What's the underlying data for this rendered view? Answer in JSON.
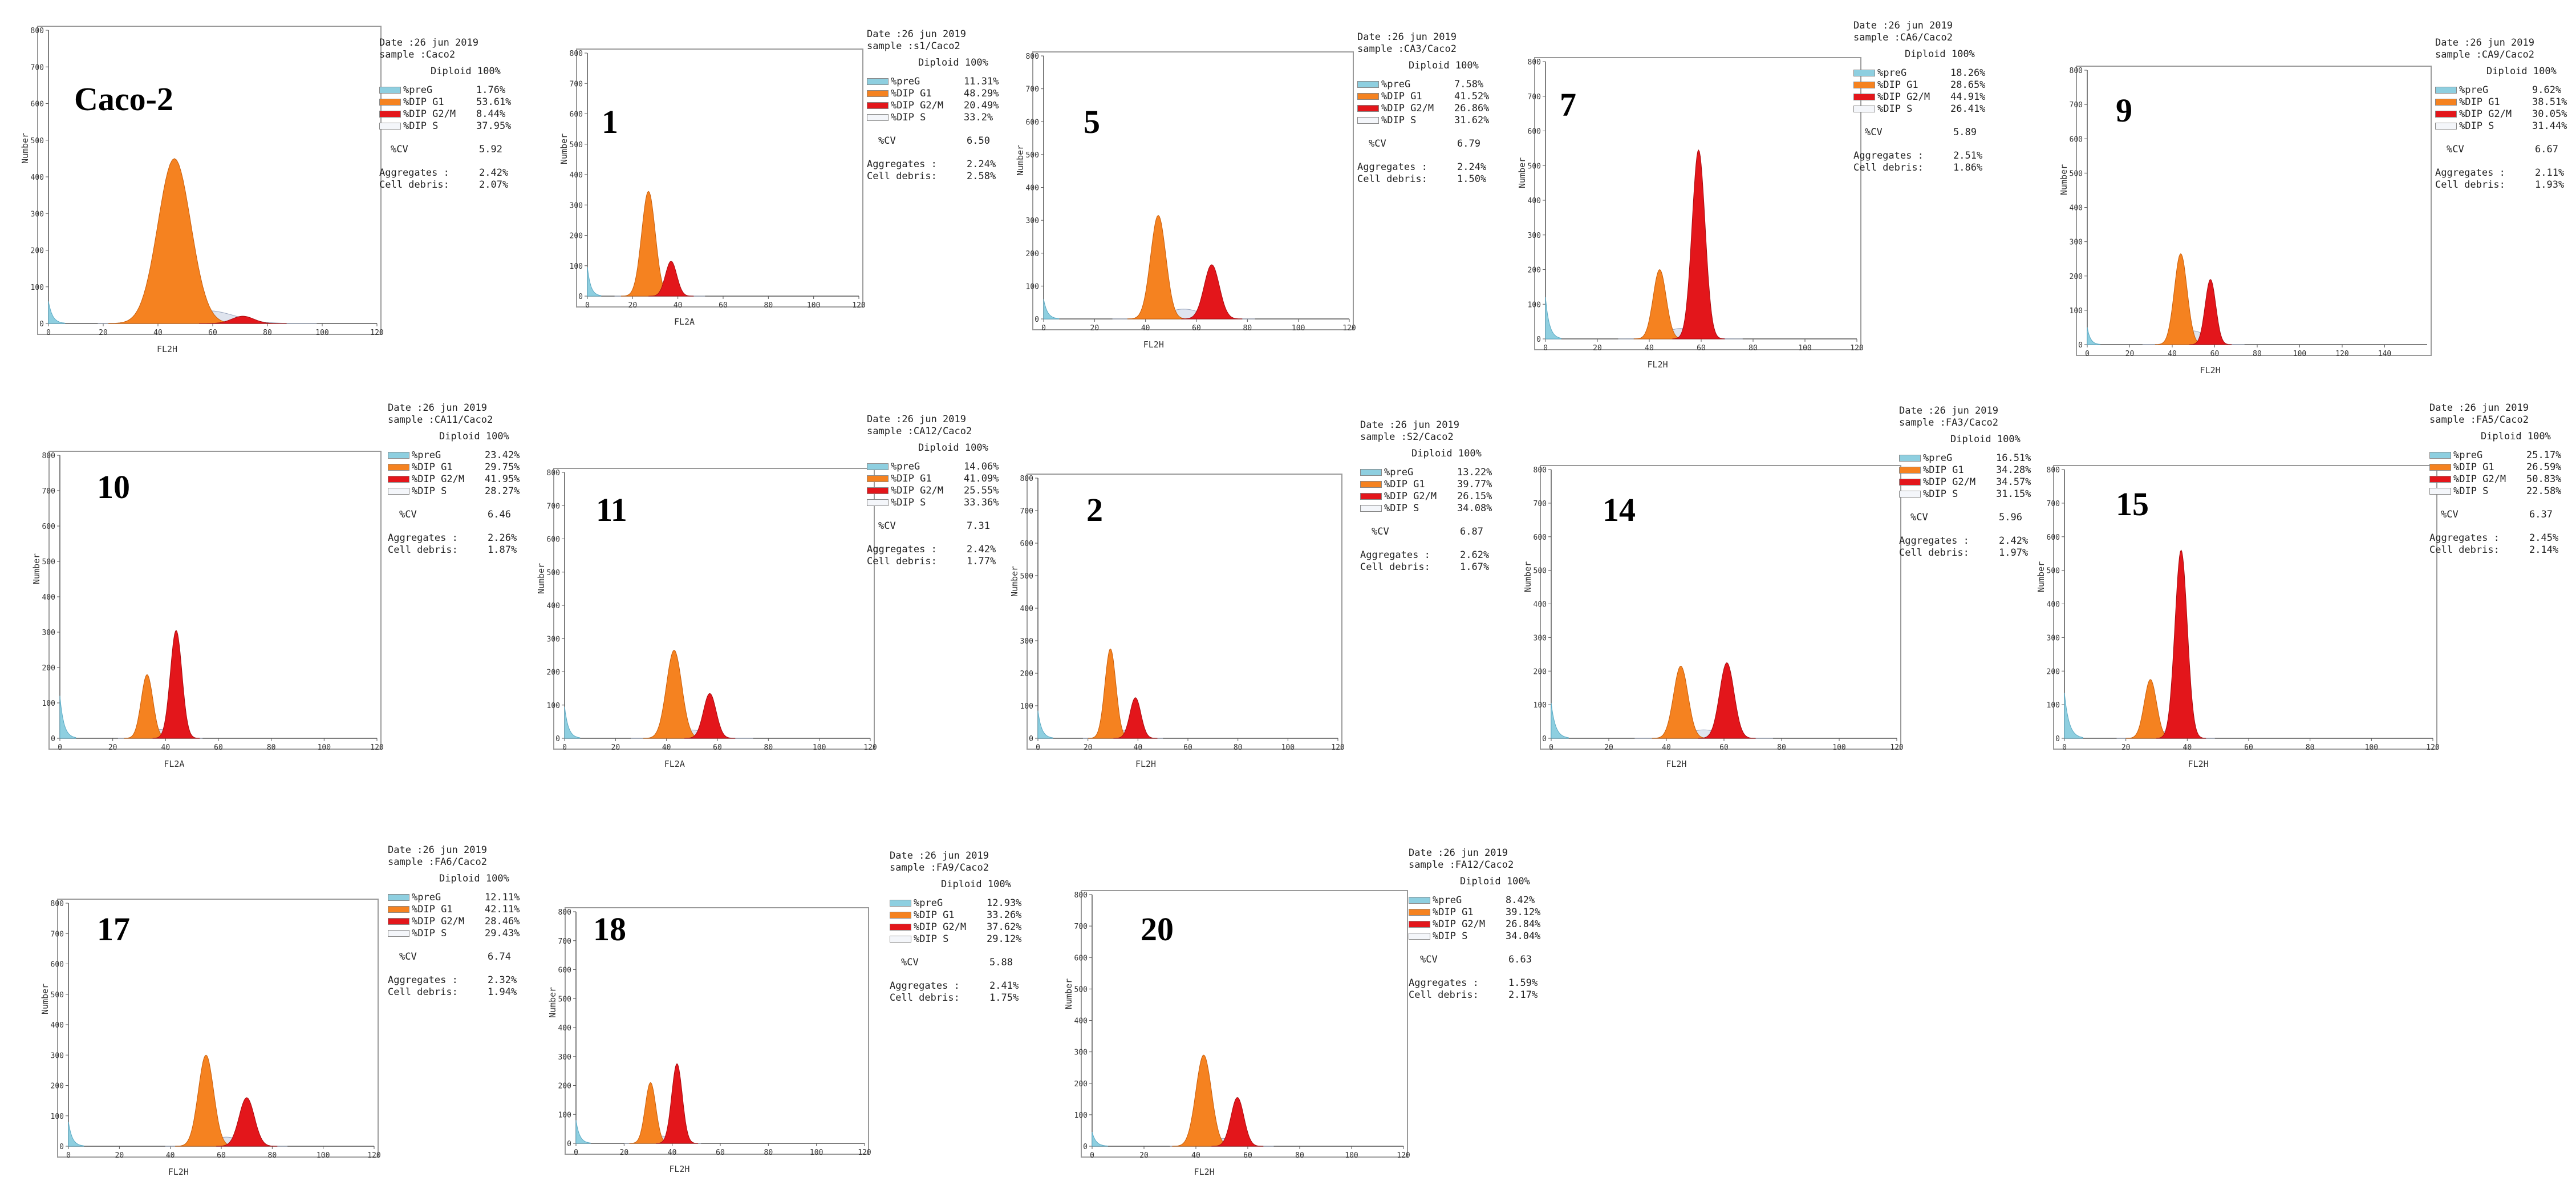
{
  "common": {
    "date_line": "Date :26 jun 2019",
    "diploid": "Diploid 100%",
    "legend_names": [
      "%preG",
      "%DIP G1",
      "%DIP G2/M",
      "%DIP S"
    ],
    "cv_label": "%CV",
    "aggregates_label": "Aggregates :",
    "debris_label": "Cell debris:",
    "y_axis_title": "Number",
    "y_ticks": [
      "0",
      "100",
      "200",
      "300",
      "400",
      "500",
      "600",
      "700",
      "800"
    ],
    "x_ticks": [
      "0",
      "20",
      "40",
      "60",
      "80",
      "100",
      "120"
    ],
    "colors": {
      "preG": "#8ecfe0",
      "g1": "#f58220",
      "g2m": "#e3161b",
      "s": "#dfe4ee"
    }
  },
  "chart_data": [
    {
      "type": "area",
      "label": "Caco-2",
      "sample": "sample :Caco2",
      "x_axis_title": "FL2H",
      "xlim": [
        0,
        120
      ],
      "ylim": [
        0,
        800
      ],
      "stats": {
        "preG": "1.76%",
        "g1": "53.61%",
        "g2m": "8.44%",
        "s": "37.95%",
        "cv": "5.92",
        "aggregates": "2.42%",
        "debris": "2.07%"
      },
      "peaks": {
        "preG": {
          "x": 0,
          "y": 60,
          "w": 1.5
        },
        "g1": {
          "x": 46,
          "y": 450,
          "w": 6
        },
        "g2m": {
          "x": 71,
          "y": 20,
          "w": 4
        },
        "s": {
          "x": 58,
          "y": 35,
          "w": 10
        }
      }
    },
    {
      "type": "area",
      "label": "1",
      "sample": "sample :s1/Caco2",
      "x_axis_title": "FL2A",
      "xlim": [
        0,
        120
      ],
      "ylim": [
        0,
        800
      ],
      "stats": {
        "preG": "11.31%",
        "g1": "48.29%",
        "g2m": "20.49%",
        "s": "33.2%",
        "cv": "6.50",
        "aggregates": "2.24%",
        "debris": "2.58%"
      },
      "peaks": {
        "preG": {
          "x": 0,
          "y": 95,
          "w": 1.5
        },
        "g1": {
          "x": 27,
          "y": 345,
          "w": 3
        },
        "g2m": {
          "x": 37,
          "y": 115,
          "w": 2.5
        },
        "s": {
          "x": 32,
          "y": 30,
          "w": 5
        }
      }
    },
    {
      "type": "area",
      "label": "5",
      "sample": "sample :CA3/Caco2",
      "x_axis_title": "FL2H",
      "xlim": [
        0,
        120
      ],
      "ylim": [
        0,
        800
      ],
      "stats": {
        "preG": "7.58%",
        "g1": "41.52%",
        "g2m": "26.86%",
        "s": "31.62%",
        "cv": "6.79",
        "aggregates": "2.24%",
        "debris": "1.50%"
      },
      "peaks": {
        "preG": {
          "x": 0,
          "y": 60,
          "w": 1.5
        },
        "g1": {
          "x": 45,
          "y": 315,
          "w": 3
        },
        "g2m": {
          "x": 66,
          "y": 165,
          "w": 3
        },
        "s": {
          "x": 55,
          "y": 30,
          "w": 7
        }
      }
    },
    {
      "type": "area",
      "label": "7",
      "sample": "sample :CA6/Caco2",
      "x_axis_title": "FL2H",
      "xlim": [
        0,
        120
      ],
      "ylim": [
        0,
        800
      ],
      "stats": {
        "preG": "18.26%",
        "g1": "28.65%",
        "g2m": "44.91%",
        "s": "26.41%",
        "cv": "5.89",
        "aggregates": "2.51%",
        "debris": "1.86%"
      },
      "peaks": {
        "preG": {
          "x": 0,
          "y": 120,
          "w": 1.5
        },
        "g1": {
          "x": 44,
          "y": 200,
          "w": 2.5
        },
        "g2m": {
          "x": 59,
          "y": 545,
          "w": 2.5
        },
        "s": {
          "x": 52,
          "y": 30,
          "w": 6
        }
      }
    },
    {
      "type": "area",
      "label": "9",
      "sample": "sample :CA9/Caco2",
      "x_axis_title": "FL2H",
      "xlim": [
        0,
        160
      ],
      "ylim": [
        0,
        800
      ],
      "stats": {
        "preG": "9.62%",
        "g1": "38.51%",
        "g2m": "30.05%",
        "s": "31.44%",
        "cv": "6.67",
        "aggregates": "2.11%",
        "debris": "1.93%"
      },
      "peaks": {
        "preG": {
          "x": 0,
          "y": 50,
          "w": 1.5
        },
        "g1": {
          "x": 44,
          "y": 265,
          "w": 3
        },
        "g2m": {
          "x": 58,
          "y": 190,
          "w": 2.5
        },
        "s": {
          "x": 50,
          "y": 40,
          "w": 6
        }
      }
    },
    {
      "type": "area",
      "label": "10",
      "sample": "sample :CA11/Caco2",
      "x_axis_title": "FL2A",
      "xlim": [
        0,
        120
      ],
      "ylim": [
        0,
        800
      ],
      "stats": {
        "preG": "23.42%",
        "g1": "29.75%",
        "g2m": "41.95%",
        "s": "28.27%",
        "cv": "6.46",
        "aggregates": "2.26%",
        "debris": "1.87%"
      },
      "peaks": {
        "preG": {
          "x": 0,
          "y": 120,
          "w": 1.5
        },
        "g1": {
          "x": 33,
          "y": 180,
          "w": 2.2
        },
        "g2m": {
          "x": 44,
          "y": 305,
          "w": 2.2
        },
        "s": {
          "x": 38,
          "y": 25,
          "w": 4
        }
      }
    },
    {
      "type": "area",
      "label": "11",
      "sample": "sample :CA12/Caco2",
      "x_axis_title": "FL2A",
      "xlim": [
        0,
        120
      ],
      "ylim": [
        0,
        800
      ],
      "stats": {
        "preG": "14.06%",
        "g1": "41.09%",
        "g2m": "25.55%",
        "s": "33.36%",
        "cv": "7.31",
        "aggregates": "2.42%",
        "debris": "1.77%"
      },
      "peaks": {
        "preG": {
          "x": 0,
          "y": 95,
          "w": 1.5
        },
        "g1": {
          "x": 43,
          "y": 265,
          "w": 3
        },
        "g2m": {
          "x": 57,
          "y": 135,
          "w": 2.5
        },
        "s": {
          "x": 50,
          "y": 25,
          "w": 6
        }
      }
    },
    {
      "type": "area",
      "label": "2",
      "sample": "sample :S2/Caco2",
      "x_axis_title": "FL2H",
      "xlim": [
        0,
        120
      ],
      "ylim": [
        0,
        800
      ],
      "stats": {
        "preG": "13.22%",
        "g1": "39.77%",
        "g2m": "26.15%",
        "s": "34.08%",
        "cv": "6.87",
        "aggregates": "2.62%",
        "debris": "1.67%"
      },
      "peaks": {
        "preG": {
          "x": 0,
          "y": 85,
          "w": 1.5
        },
        "g1": {
          "x": 29,
          "y": 275,
          "w": 2.2
        },
        "g2m": {
          "x": 39,
          "y": 125,
          "w": 2.2
        },
        "s": {
          "x": 34,
          "y": 25,
          "w": 4
        }
      }
    },
    {
      "type": "area",
      "label": "14",
      "sample": "sample :FA3/Caco2",
      "x_axis_title": "FL2H",
      "xlim": [
        0,
        120
      ],
      "ylim": [
        0,
        800
      ],
      "stats": {
        "preG": "16.51%",
        "g1": "34.28%",
        "g2m": "34.57%",
        "s": "31.15%",
        "cv": "5.96",
        "aggregates": "2.42%",
        "debris": "1.97%"
      },
      "peaks": {
        "preG": {
          "x": 0,
          "y": 105,
          "w": 1.5
        },
        "g1": {
          "x": 45,
          "y": 215,
          "w": 2.5
        },
        "g2m": {
          "x": 61,
          "y": 225,
          "w": 2.5
        },
        "s": {
          "x": 53,
          "y": 25,
          "w": 6
        }
      }
    },
    {
      "type": "area",
      "label": "15",
      "sample": "sample :FA5/Caco2",
      "x_axis_title": "FL2H",
      "xlim": [
        0,
        120
      ],
      "ylim": [
        0,
        800
      ],
      "stats": {
        "preG": "25.17%",
        "g1": "26.59%",
        "g2m": "50.83%",
        "s": "22.58%",
        "cv": "6.37",
        "aggregates": "2.45%",
        "debris": "2.14%"
      },
      "peaks": {
        "preG": {
          "x": 0,
          "y": 135,
          "w": 1.5
        },
        "g1": {
          "x": 28,
          "y": 175,
          "w": 2
        },
        "g2m": {
          "x": 38,
          "y": 560,
          "w": 2
        },
        "s": {
          "x": 33,
          "y": 20,
          "w": 4
        }
      }
    },
    {
      "type": "area",
      "label": "17",
      "sample": "sample :FA6/Caco2",
      "x_axis_title": "FL2H",
      "xlim": [
        0,
        120
      ],
      "ylim": [
        0,
        800
      ],
      "stats": {
        "preG": "12.11%",
        "g1": "42.11%",
        "g2m": "28.46%",
        "s": "29.43%",
        "cv": "6.74",
        "aggregates": "2.32%",
        "debris": "1.94%"
      },
      "peaks": {
        "preG": {
          "x": 0,
          "y": 80,
          "w": 1.5
        },
        "g1": {
          "x": 54,
          "y": 300,
          "w": 3
        },
        "g2m": {
          "x": 70,
          "y": 160,
          "w": 3
        },
        "s": {
          "x": 62,
          "y": 30,
          "w": 6
        }
      }
    },
    {
      "type": "area",
      "label": "18",
      "sample": "sample :FA9/Caco2",
      "x_axis_title": "FL2H",
      "xlim": [
        0,
        120
      ],
      "ylim": [
        0,
        800
      ],
      "stats": {
        "preG": "12.93%",
        "g1": "33.26%",
        "g2m": "37.62%",
        "s": "29.12%",
        "cv": "5.88",
        "aggregates": "2.41%",
        "debris": "1.75%"
      },
      "peaks": {
        "preG": {
          "x": 0,
          "y": 80,
          "w": 1.5
        },
        "g1": {
          "x": 31,
          "y": 210,
          "w": 2.2
        },
        "g2m": {
          "x": 42,
          "y": 275,
          "w": 2.2
        },
        "s": {
          "x": 36,
          "y": 25,
          "w": 4
        }
      }
    },
    {
      "type": "area",
      "label": "20",
      "sample": "sample :FA12/Caco2",
      "x_axis_title": "FL2H",
      "xlim": [
        0,
        120
      ],
      "ylim": [
        0,
        800
      ],
      "stats": {
        "preG": "8.42%",
        "g1": "39.12%",
        "g2m": "26.84%",
        "s": "34.04%",
        "cv": "6.63",
        "aggregates": "1.59%",
        "debris": "2.17%"
      },
      "peaks": {
        "preG": {
          "x": 0,
          "y": 45,
          "w": 1.5
        },
        "g1": {
          "x": 43,
          "y": 290,
          "w": 3
        },
        "g2m": {
          "x": 56,
          "y": 155,
          "w": 2.5
        },
        "s": {
          "x": 50,
          "y": 25,
          "w": 5
        }
      }
    }
  ]
}
